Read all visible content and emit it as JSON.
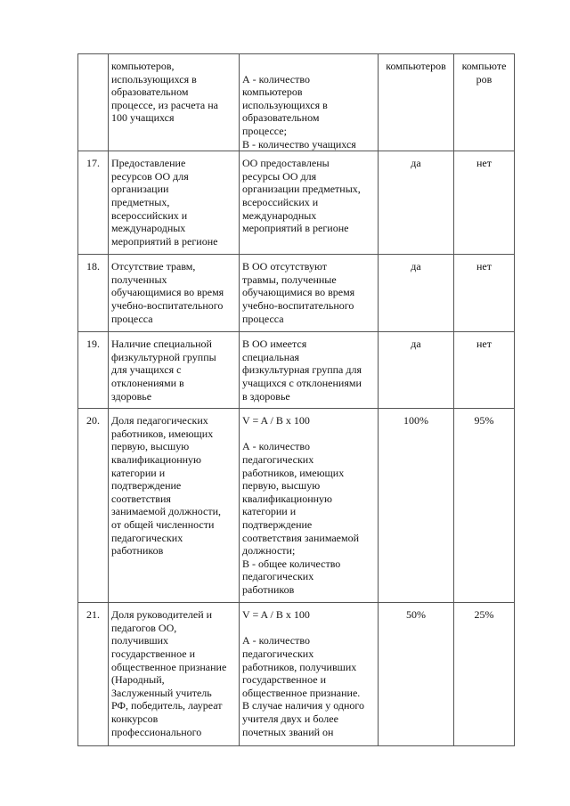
{
  "table": {
    "rows": [
      {
        "num": "",
        "indicator": "компьютеров,\nиспользующихся в\nобразовательном\nпроцессе, из расчета на\n100 учащихся",
        "method": "\nА - количество\nкомпьютеров\nиспользующихся в\nобразовательном\nпроцессе;\nВ - количество учащихся",
        "target": "компьютеров",
        "actual": "компьюте\nров"
      },
      {
        "num": "17.",
        "indicator": "Предоставление\nресурсов ОО для\nорганизации\nпредметных,\nвсероссийских и\nмеждународных\nмероприятий в регионе",
        "method": "ОО предоставлены\nресурсы ОО для\nорганизации предметных,\nвсероссийских и\nмеждународных\nмероприятий в регионе",
        "target": "да",
        "actual": "нет"
      },
      {
        "num": "18.",
        "indicator": "Отсутствие травм,\nполученных\nобучающимися во время\nучебно-воспитательного\nпроцесса",
        "method": "В ОО отсутствуют\nтравмы, полученные\nобучающимися во время\nучебно-воспитательного\nпроцесса",
        "target": "да",
        "actual": "нет"
      },
      {
        "num": "19.",
        "indicator": "Наличие специальной\nфизкультурной группы\nдля учащихся с\nотклонениями в\nздоровье",
        "method": "В ОО имеется\nспециальная\nфизкультурная группа для\nучащихся с отклонениями\nв здоровье",
        "target": "да",
        "actual": "нет"
      },
      {
        "num": "20.",
        "indicator": "Доля педагогических\nработников, имеющих\nпервую, высшую\nквалификационную\nкатегории и\nподтверждение\nсоответствия\nзанимаемой должности,\nот общей численности\nпедагогических\nработников",
        "method": "V = A / B x 100\n\nА - количество\nпедагогических\nработников, имеющих\nпервую, высшую\nквалификационную\nкатегории и\nподтверждение\nсоответствия занимаемой\nдолжности;\nВ - общее количество\nпедагогических\nработников",
        "target": "100%",
        "actual": "95%"
      },
      {
        "num": "21.",
        "indicator": "Доля руководителей и\nпедагогов ОО,\nполучивших\nгосударственное и\nобщественное признание\n(Народный,\nЗаслуженный учитель\nРФ, победитель, лауреат\nконкурсов\nпрофессионального",
        "method": "V = A / B x 100\n\nА - количество\nпедагогических\nработников, получивших\nгосударственное и\nобщественное признание.\nВ случае наличия у одного\nучителя двух и более\nпочетных званий он",
        "target": "50%",
        "actual": "25%"
      }
    ]
  }
}
